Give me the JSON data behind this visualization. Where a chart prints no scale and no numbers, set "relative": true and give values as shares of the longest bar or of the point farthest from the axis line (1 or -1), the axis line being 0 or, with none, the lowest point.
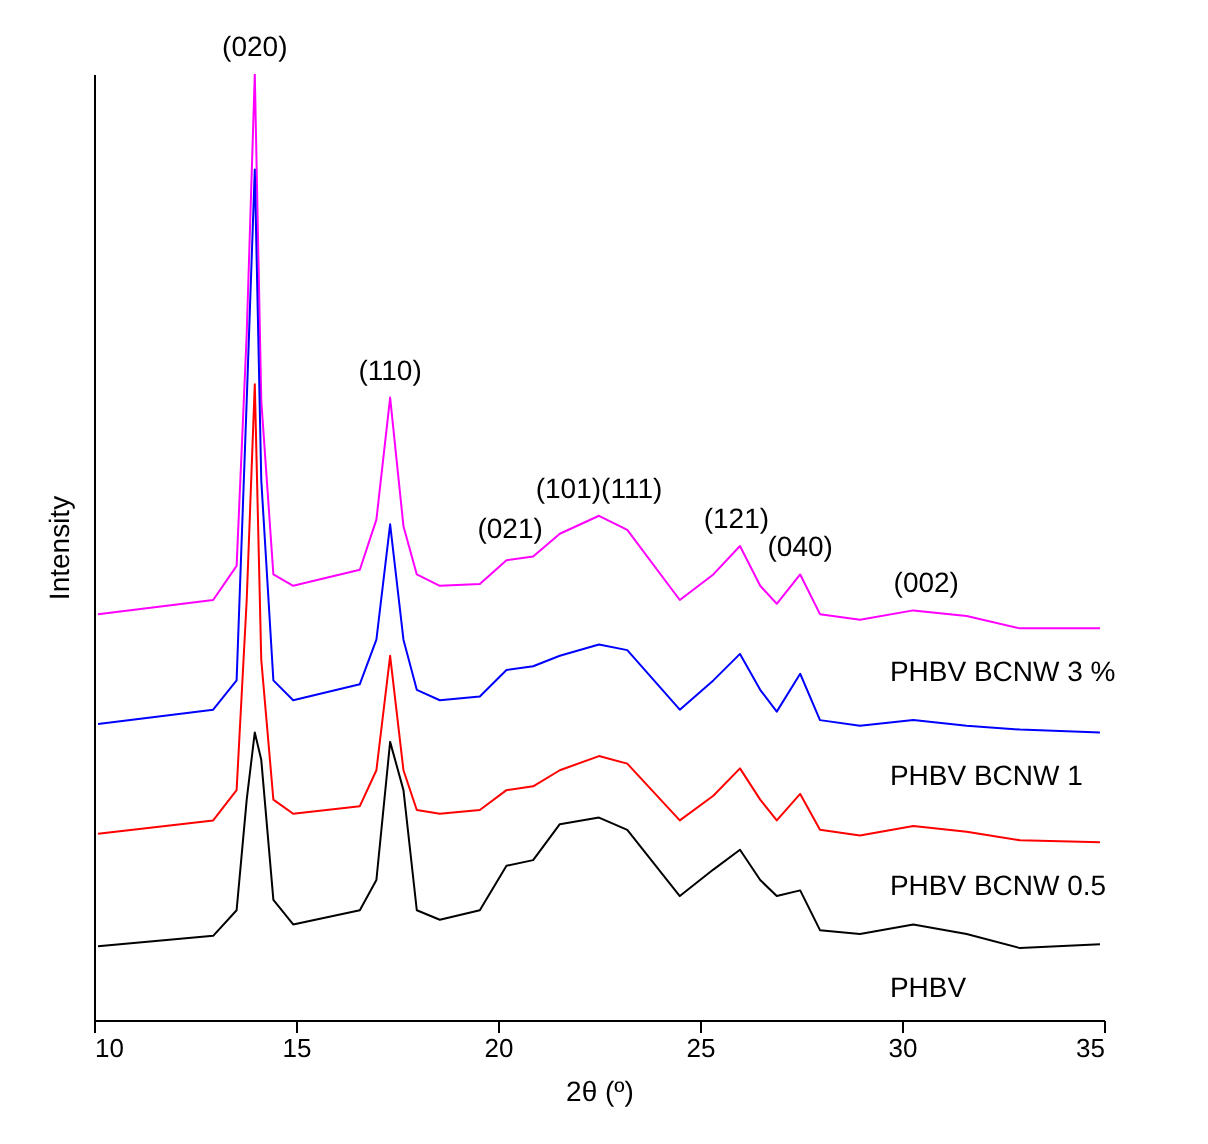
{
  "chart_data": {
    "type": "line",
    "relative": true,
    "xlabel": "2θ (º)",
    "ylabel": "Intensity",
    "xlim": [
      10,
      35
    ],
    "xticks": [
      10,
      15,
      20,
      25,
      30,
      35
    ],
    "grid": false,
    "legend": false,
    "marker": "none",
    "x": [
      10.1,
      12.95,
      13.53,
      13.78,
      13.98,
      14.14,
      14.44,
      14.93,
      16.58,
      16.99,
      17.33,
      17.66,
      17.99,
      18.56,
      19.55,
      20.21,
      20.87,
      21.53,
      22.5,
      23.2,
      24.5,
      25.33,
      25.99,
      26.49,
      26.9,
      27.48,
      27.97,
      28.96,
      30.28,
      31.6,
      32.92,
      34.9
    ],
    "series": [
      {
        "name": "PHBV BCNW 3  %",
        "color": "#ff00ff",
        "values": [
          0.429,
          0.444,
          0.48,
          0.725,
          1,
          0.655,
          0.471,
          0.459,
          0.476,
          0.529,
          0.658,
          0.522,
          0.471,
          0.459,
          0.461,
          0.486,
          0.49,
          0.514,
          0.533,
          0.518,
          0.444,
          0.471,
          0.501,
          0.459,
          0.44,
          0.471,
          0.429,
          0.423,
          0.433,
          0.427,
          0.414,
          0.414
        ]
      },
      {
        "name": "PHBV BCNW 1",
        "color": "#0000ff",
        "values": [
          0.313,
          0.328,
          0.359,
          0.655,
          0.899,
          0.571,
          0.359,
          0.338,
          0.355,
          0.402,
          0.524,
          0.402,
          0.349,
          0.338,
          0.342,
          0.37,
          0.374,
          0.385,
          0.397,
          0.391,
          0.328,
          0.359,
          0.387,
          0.349,
          0.326,
          0.366,
          0.317,
          0.311,
          0.317,
          0.311,
          0.307,
          0.304
        ]
      },
      {
        "name": "PHBV BCNW 0.5",
        "color": "#ff0000",
        "values": [
          0.197,
          0.211,
          0.243,
          0.444,
          0.672,
          0.381,
          0.233,
          0.218,
          0.226,
          0.264,
          0.385,
          0.264,
          0.222,
          0.218,
          0.222,
          0.243,
          0.247,
          0.264,
          0.279,
          0.271,
          0.211,
          0.237,
          0.266,
          0.233,
          0.211,
          0.239,
          0.201,
          0.195,
          0.205,
          0.199,
          0.19,
          0.188
        ]
      },
      {
        "name": "PHBV",
        "color": "#000000",
        "values": [
          0.078,
          0.089,
          0.116,
          0.233,
          0.304,
          0.275,
          0.127,
          0.101,
          0.116,
          0.148,
          0.294,
          0.243,
          0.116,
          0.106,
          0.116,
          0.163,
          0.169,
          0.207,
          0.214,
          0.201,
          0.131,
          0.159,
          0.18,
          0.148,
          0.131,
          0.137,
          0.095,
          0.091,
          0.101,
          0.091,
          0.076,
          0.08
        ]
      }
    ],
    "annotations": [
      {
        "text": "(020)",
        "x": 13.98,
        "y": 1
      },
      {
        "text": "(110)",
        "x": 17.33,
        "y": 0.658
      },
      {
        "text": "(021)",
        "x": 20.3,
        "y": 0.49
      },
      {
        "text": "(101)(111)",
        "x": 22.5,
        "y": 0.533
      },
      {
        "text": "(121)",
        "x": 25.9,
        "y": 0.501
      },
      {
        "text": "(040)",
        "x": 27.48,
        "y": 0.471
      },
      {
        "text": "(002)",
        "x": 30.6,
        "y": 0.433
      }
    ]
  }
}
